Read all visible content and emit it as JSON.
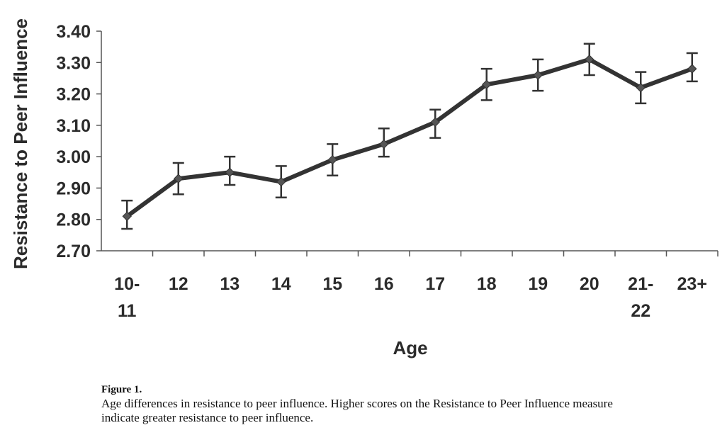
{
  "chart_data": {
    "type": "line",
    "xlabel": "Age",
    "ylabel": "Resistance to Peer Influence",
    "categories": [
      [
        "10-",
        "11"
      ],
      [
        "12"
      ],
      [
        "13"
      ],
      [
        "14"
      ],
      [
        "15"
      ],
      [
        "16"
      ],
      [
        "17"
      ],
      [
        "18"
      ],
      [
        "19"
      ],
      [
        "20"
      ],
      [
        "21-",
        "22"
      ],
      [
        "23+"
      ]
    ],
    "values": [
      2.81,
      2.93,
      2.95,
      2.92,
      2.99,
      3.04,
      3.11,
      3.23,
      3.26,
      3.31,
      3.22,
      3.28
    ],
    "error_upper": [
      2.86,
      2.98,
      3.0,
      2.97,
      3.04,
      3.09,
      3.15,
      3.28,
      3.31,
      3.36,
      3.27,
      3.33
    ],
    "error_lower": [
      2.77,
      2.88,
      2.91,
      2.87,
      2.94,
      3.0,
      3.06,
      3.18,
      3.21,
      3.26,
      3.17,
      3.24
    ],
    "ylim": [
      2.7,
      3.4
    ],
    "yticks": [
      "2.70",
      "2.80",
      "2.90",
      "3.00",
      "3.10",
      "3.20",
      "3.30",
      "3.40"
    ],
    "ytick_values": [
      2.7,
      2.8,
      2.9,
      3.0,
      3.1,
      3.2,
      3.3,
      3.4
    ],
    "grid": false,
    "legend": "none",
    "line_color": "#333333",
    "marker": "diamond"
  },
  "caption": {
    "title": "Figure 1.",
    "text": "Age differences in resistance to peer influence. Higher scores on the Resistance to Peer Influence measure indicate greater resistance to peer influence."
  }
}
